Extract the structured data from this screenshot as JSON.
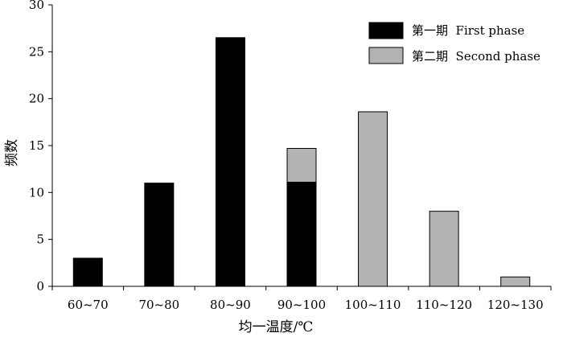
{
  "chart_data": {
    "type": "bar",
    "categories": [
      "60~70",
      "70~80",
      "80~90",
      "90~100",
      "100~110",
      "110~120",
      "120~130"
    ],
    "series": [
      {
        "name": "第一期  First phase",
        "values": [
          3,
          11,
          26.5,
          11.1,
          0,
          0,
          0
        ],
        "color": "#000000"
      },
      {
        "name": "第二期  Second phase",
        "values": [
          0,
          0,
          0,
          3.6,
          18.6,
          8,
          1
        ],
        "color": "#b3b3b3"
      }
    ],
    "xlabel": "均一温度/℃",
    "ylabel": "频数",
    "ylim": [
      0,
      30
    ],
    "yticks": [
      0,
      5,
      10,
      15,
      20,
      25,
      30
    ],
    "grid": false,
    "legend_position": "top-right"
  }
}
